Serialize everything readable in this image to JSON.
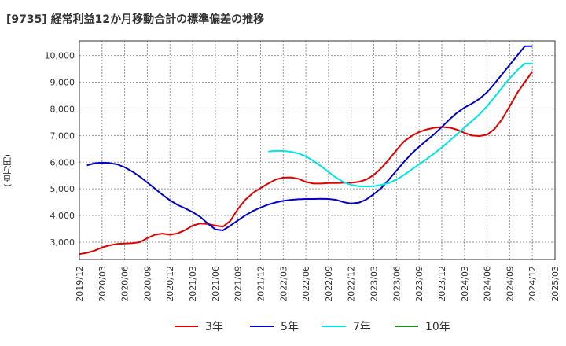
{
  "chart_data": {
    "type": "line",
    "title": "[9735]  経常利益12か月移動合計の標準偏差の推移",
    "ylabel": "(百万円)",
    "xlabel": "",
    "y_ticks": [
      3000,
      4000,
      5000,
      6000,
      7000,
      8000,
      9000,
      10000
    ],
    "y_tick_labels": [
      "3,000",
      "4,000",
      "5,000",
      "6,000",
      "7,000",
      "8,000",
      "9,000",
      "10,000"
    ],
    "ylim": [
      2350,
      10550
    ],
    "x_tick_labels": [
      "2019/12",
      "2020/03",
      "2020/06",
      "2020/09",
      "2020/12",
      "2021/03",
      "2021/06",
      "2021/09",
      "2021/12",
      "2022/03",
      "2022/06",
      "2022/09",
      "2022/12",
      "2023/03",
      "2023/06",
      "2023/09",
      "2023/12",
      "2024/03",
      "2024/06",
      "2024/09",
      "2024/12",
      "2025/03"
    ],
    "x_range": [
      "2019/12",
      "2025/03"
    ],
    "grid": true,
    "legend_position": "bottom",
    "series": [
      {
        "name": "3年",
        "color": "#e00000",
        "x": [
          "2019/12",
          "2020/01",
          "2020/02",
          "2020/03",
          "2020/04",
          "2020/05",
          "2020/06",
          "2020/07",
          "2020/08",
          "2020/09",
          "2020/10",
          "2020/11",
          "2020/12",
          "2021/01",
          "2021/02",
          "2021/03",
          "2021/04",
          "2021/05",
          "2021/06",
          "2021/07",
          "2021/08",
          "2021/09",
          "2021/10",
          "2021/11",
          "2021/12",
          "2022/01",
          "2022/02",
          "2022/03",
          "2022/04",
          "2022/05",
          "2022/06",
          "2022/07",
          "2022/08",
          "2022/09",
          "2022/10",
          "2022/11",
          "2022/12",
          "2023/01",
          "2023/02",
          "2023/03",
          "2023/04",
          "2023/05",
          "2023/06",
          "2023/07",
          "2023/08",
          "2023/09",
          "2023/10",
          "2023/11",
          "2023/12",
          "2024/01",
          "2024/02",
          "2024/03",
          "2024/04",
          "2024/05",
          "2024/06",
          "2024/07",
          "2024/08",
          "2024/09",
          "2024/10",
          "2024/11",
          "2024/12"
        ],
        "values": [
          2550,
          2600,
          2680,
          2800,
          2880,
          2930,
          2950,
          2960,
          3000,
          3150,
          3280,
          3320,
          3280,
          3330,
          3450,
          3620,
          3700,
          3680,
          3620,
          3580,
          3800,
          4250,
          4600,
          4850,
          5030,
          5200,
          5350,
          5420,
          5430,
          5380,
          5260,
          5200,
          5200,
          5220,
          5220,
          5230,
          5230,
          5260,
          5350,
          5520,
          5780,
          6100,
          6450,
          6780,
          6980,
          7130,
          7230,
          7290,
          7320,
          7300,
          7220,
          7100,
          7000,
          6980,
          7030,
          7250,
          7620,
          8100,
          8600,
          9000,
          9400
        ]
      },
      {
        "name": "5年",
        "color": "#0000c8",
        "x": [
          "2020/01",
          "2020/02",
          "2020/03",
          "2020/04",
          "2020/05",
          "2020/06",
          "2020/07",
          "2020/08",
          "2020/09",
          "2020/10",
          "2020/11",
          "2020/12",
          "2021/01",
          "2021/02",
          "2021/03",
          "2021/04",
          "2021/05",
          "2021/06",
          "2021/07",
          "2021/08",
          "2021/09",
          "2021/10",
          "2021/11",
          "2021/12",
          "2022/01",
          "2022/02",
          "2022/03",
          "2022/04",
          "2022/05",
          "2022/06",
          "2022/07",
          "2022/08",
          "2022/09",
          "2022/10",
          "2022/11",
          "2022/12",
          "2023/01",
          "2023/02",
          "2023/03",
          "2023/04",
          "2023/05",
          "2023/06",
          "2023/07",
          "2023/08",
          "2023/09",
          "2023/10",
          "2023/11",
          "2023/12",
          "2024/01",
          "2024/02",
          "2024/03",
          "2024/04",
          "2024/05",
          "2024/06",
          "2024/07",
          "2024/08",
          "2024/09",
          "2024/10",
          "2024/11",
          "2024/12"
        ],
        "values": [
          5880,
          5960,
          5980,
          5970,
          5920,
          5810,
          5650,
          5460,
          5240,
          5010,
          4780,
          4570,
          4400,
          4270,
          4130,
          3950,
          3700,
          3480,
          3440,
          3620,
          3820,
          4010,
          4170,
          4300,
          4410,
          4490,
          4550,
          4590,
          4610,
          4620,
          4620,
          4630,
          4620,
          4590,
          4500,
          4450,
          4480,
          4600,
          4800,
          5030,
          5350,
          5680,
          6010,
          6320,
          6580,
          6820,
          7050,
          7320,
          7600,
          7850,
          8050,
          8200,
          8380,
          8620,
          8950,
          9300,
          9650,
          10000,
          10350,
          10350
        ]
      },
      {
        "name": "7年",
        "color": "#00e5e5",
        "x": [
          "2022/01",
          "2022/02",
          "2022/03",
          "2022/04",
          "2022/05",
          "2022/06",
          "2022/07",
          "2022/08",
          "2022/09",
          "2022/10",
          "2022/11",
          "2022/12",
          "2023/01",
          "2023/02",
          "2023/03",
          "2023/04",
          "2023/05",
          "2023/06",
          "2023/07",
          "2023/08",
          "2023/09",
          "2023/10",
          "2023/11",
          "2023/12",
          "2024/01",
          "2024/02",
          "2024/03",
          "2024/04",
          "2024/05",
          "2024/06",
          "2024/07",
          "2024/08",
          "2024/09",
          "2024/10",
          "2024/11",
          "2024/12"
        ],
        "values": [
          6400,
          6430,
          6420,
          6390,
          6330,
          6220,
          6050,
          5850,
          5630,
          5420,
          5250,
          5150,
          5100,
          5090,
          5100,
          5150,
          5220,
          5350,
          5520,
          5720,
          5920,
          6120,
          6330,
          6550,
          6800,
          7050,
          7300,
          7550,
          7800,
          8100,
          8450,
          8800,
          9150,
          9450,
          9700,
          9700
        ]
      },
      {
        "name": "10年",
        "color": "#228b22",
        "x": [],
        "values": []
      }
    ]
  }
}
